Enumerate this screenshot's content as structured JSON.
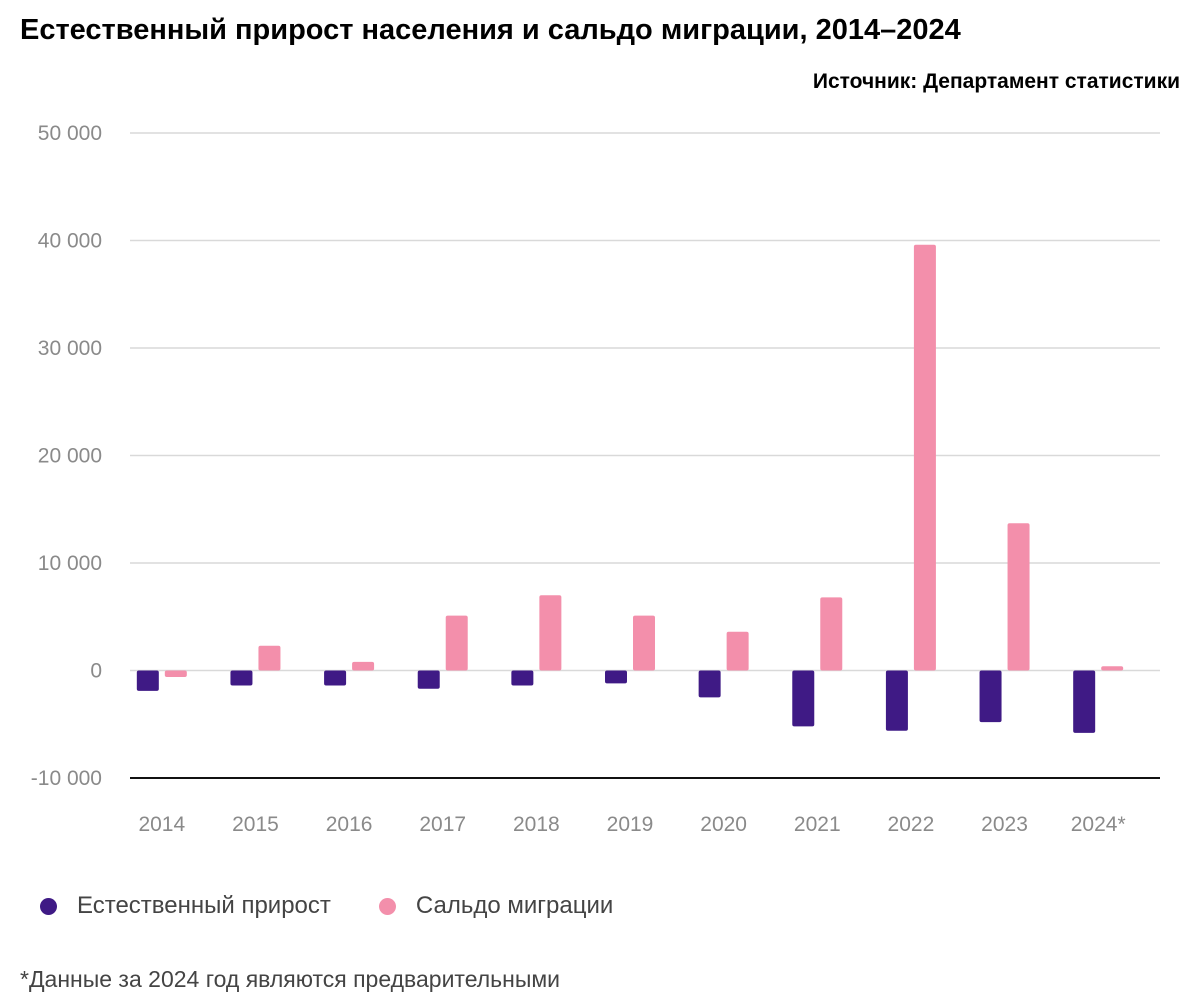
{
  "title": "Естественный прирост населения и сальдо миграции, 2014–2024",
  "source": "Источник: Департамент статистики",
  "footnote": "*Данные за 2024 год являются предварительными",
  "chart_data": {
    "type": "bar",
    "title": "Естественный прирост населения и сальдо миграции, 2014–2024",
    "xlabel": "",
    "ylabel": "",
    "ylim": [
      -10000,
      50000
    ],
    "yticks": [
      50000,
      40000,
      30000,
      20000,
      10000,
      0,
      -10000
    ],
    "ytick_labels": [
      "50 000",
      "40 000",
      "30 000",
      "20 000",
      "10 000",
      "0",
      "-10 000"
    ],
    "categories": [
      "2014",
      "2015",
      "2016",
      "2017",
      "2018",
      "2019",
      "2020",
      "2021",
      "2022",
      "2023",
      "2024*"
    ],
    "series": [
      {
        "name": "Естественный прирост",
        "color": "#3f1a85",
        "values": [
          -1900,
          -1400,
          -1400,
          -1700,
          -1400,
          -1200,
          -2500,
          -5200,
          -5600,
          -4800,
          -5800
        ]
      },
      {
        "name": "Сальдо миграции",
        "color": "#f38fab",
        "values": [
          -600,
          2300,
          800,
          5100,
          7000,
          5100,
          3600,
          6800,
          39600,
          13700,
          400
        ]
      }
    ],
    "grid": true,
    "legend": "bottom-left"
  }
}
